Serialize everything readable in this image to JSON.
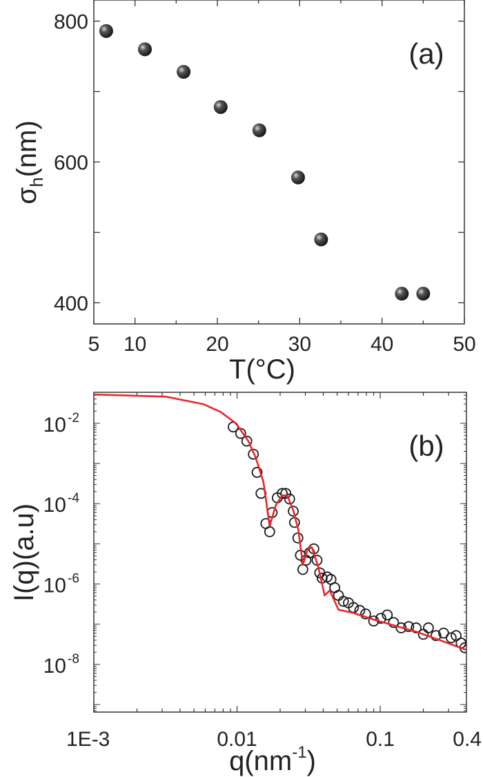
{
  "chart_data": [
    {
      "type": "scatter",
      "panel_label": "(a)",
      "xlabel": "T(°C)",
      "ylabel": {
        "base": "σ",
        "sub": "h",
        "rest": "(nm)"
      },
      "xlim": [
        5,
        50
      ],
      "ylim": [
        370,
        830
      ],
      "xticks": [
        5,
        10,
        20,
        30,
        40,
        50
      ],
      "yticks": [
        400,
        600,
        800
      ],
      "grid": false,
      "marker": "filled sphere",
      "marker_color": "#1a1a1a",
      "points": [
        {
          "x": 6.5,
          "y": 786
        },
        {
          "x": 11.2,
          "y": 760
        },
        {
          "x": 15.9,
          "y": 728
        },
        {
          "x": 20.4,
          "y": 678
        },
        {
          "x": 25.1,
          "y": 645
        },
        {
          "x": 29.8,
          "y": 578
        },
        {
          "x": 32.6,
          "y": 490
        },
        {
          "x": 42.4,
          "y": 413
        },
        {
          "x": 45.0,
          "y": 413
        }
      ]
    },
    {
      "type": "scatter",
      "panel_label": "(b)",
      "xlabel": {
        "base": "q(nm",
        "sup": "-1",
        "rest": ")"
      },
      "ylabel": "I(q)(a.u)",
      "xscale": "log",
      "yscale": "log",
      "xlim": [
        0.001,
        0.4
      ],
      "ylim": [
        6.5e-10,
        0.059
      ],
      "xticks": [
        {
          "v": 0.001,
          "label": "1E-3"
        },
        {
          "v": 0.01,
          "label": "0.01"
        },
        {
          "v": 0.1,
          "label": "0.1"
        },
        {
          "v": 0.4,
          "label": "0.4"
        }
      ],
      "yticks": [
        {
          "v": 0.01,
          "exp": "-2"
        },
        {
          "v": 0.0001,
          "exp": "-4"
        },
        {
          "v": 1e-06,
          "exp": "-6"
        },
        {
          "v": 1e-08,
          "exp": "-8"
        }
      ],
      "grid": false,
      "fit_color": "#e8262b",
      "marker": "open circle",
      "data_points": [
        [
          0.0094,
          0.0081
        ],
        [
          0.0106,
          0.0056
        ],
        [
          0.0117,
          0.0036
        ],
        [
          0.013,
          0.0017
        ],
        [
          0.0138,
          0.0006
        ],
        [
          0.0147,
          0.00018
        ],
        [
          0.0159,
          3.2e-05
        ],
        [
          0.0169,
          2e-05
        ],
        [
          0.0176,
          6e-05
        ],
        [
          0.0191,
          0.00014
        ],
        [
          0.0207,
          0.00018
        ],
        [
          0.0219,
          0.00018
        ],
        [
          0.0233,
          0.00013
        ],
        [
          0.0247,
          6.5e-05
        ],
        [
          0.0252,
          3.4e-05
        ],
        [
          0.0266,
          1.4e-05
        ],
        [
          0.0277,
          5.2e-06
        ],
        [
          0.0288,
          2.3e-06
        ],
        [
          0.0303,
          3.9e-06
        ],
        [
          0.0321,
          6e-06
        ],
        [
          0.0344,
          7.5e-06
        ],
        [
          0.0362,
          3.9e-06
        ],
        [
          0.0378,
          1.9e-06
        ],
        [
          0.0393,
          1.4e-06
        ],
        [
          0.0426,
          1.5e-06
        ],
        [
          0.0453,
          1.3e-06
        ],
        [
          0.0481,
          8.1e-07
        ],
        [
          0.0511,
          5.2e-07
        ],
        [
          0.0553,
          3.7e-07
        ],
        [
          0.06,
          3.4e-07
        ],
        [
          0.065,
          2.6e-07
        ],
        [
          0.072,
          2.2e-07
        ],
        [
          0.079,
          1.8e-07
        ],
        [
          0.09,
          1.2e-07
        ],
        [
          0.101,
          1.4e-07
        ],
        [
          0.112,
          1.7e-07
        ],
        [
          0.124,
          1.1e-07
        ],
        [
          0.14,
          8.1e-08
        ],
        [
          0.158,
          8.7e-08
        ],
        [
          0.178,
          8.1e-08
        ],
        [
          0.2,
          5.6e-08
        ],
        [
          0.217,
          8.1e-08
        ],
        [
          0.245,
          5.2e-08
        ],
        [
          0.277,
          6e-08
        ],
        [
          0.313,
          4.6e-08
        ],
        [
          0.339,
          5.2e-08
        ],
        [
          0.367,
          3.4e-08
        ],
        [
          0.39,
          2.6e-08
        ]
      ],
      "fit_curve": [
        [
          0.001,
          0.052
        ],
        [
          0.00318,
          0.046
        ],
        [
          0.00581,
          0.03
        ],
        [
          0.00769,
          0.019
        ],
        [
          0.0098,
          0.01
        ],
        [
          0.012,
          0.0036
        ],
        [
          0.0135,
          0.0014
        ],
        [
          0.0153,
          0.00034
        ],
        [
          0.0169,
          2.8e-05
        ],
        [
          0.0187,
          9.3e-05
        ],
        [
          0.0207,
          0.00016
        ],
        [
          0.0224,
          0.00016
        ],
        [
          0.0247,
          6.9e-05
        ],
        [
          0.0268,
          2.2e-05
        ],
        [
          0.0288,
          3e-06
        ],
        [
          0.0315,
          8.1e-06
        ],
        [
          0.0334,
          8.1e-06
        ],
        [
          0.037,
          2.6e-06
        ],
        [
          0.0409,
          5.2e-07
        ],
        [
          0.0444,
          6.9e-07
        ],
        [
          0.0511,
          2.3e-07
        ],
        [
          0.065,
          1.9e-07
        ],
        [
          0.097,
          1.2e-07
        ],
        [
          0.178,
          6.5e-08
        ],
        [
          0.266,
          3.9e-08
        ],
        [
          0.398,
          2.3e-08
        ]
      ]
    }
  ]
}
